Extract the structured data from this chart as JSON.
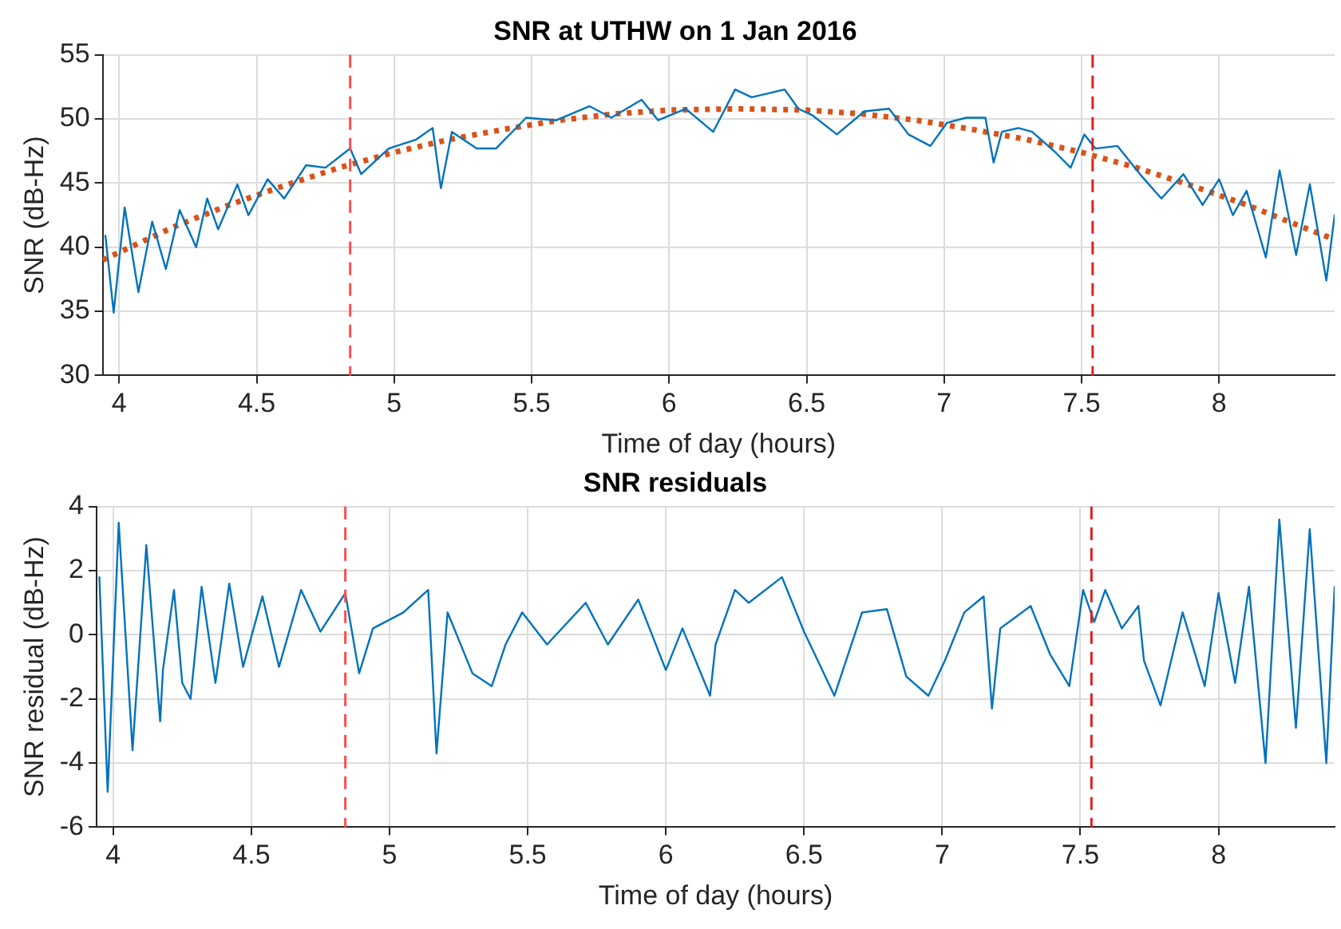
{
  "chart_data": [
    {
      "type": "line",
      "title": "SNR at UTHW on 1 Jan 2016",
      "xlabel": "Time of day (hours)",
      "ylabel": "SNR (dB-Hz)",
      "xlim": [
        3.94,
        8.42
      ],
      "xticks": [
        4,
        4.5,
        5,
        5.5,
        6,
        6.5,
        7,
        7.5,
        8
      ],
      "ylim": [
        30,
        55
      ],
      "yticks": [
        30,
        35,
        40,
        45,
        50,
        55
      ],
      "grid": true,
      "ref_lines": [
        {
          "axis": "x",
          "value": 4.84,
          "color": "#ff4d4d",
          "line_style": "dashed"
        },
        {
          "axis": "x",
          "value": 7.54,
          "color": "#e02020",
          "line_style": "dashed"
        }
      ],
      "series": [
        {
          "color": "#0072bd",
          "x": [
            3.95,
            3.98,
            4.02,
            4.07,
            4.12,
            4.17,
            4.22,
            4.28,
            4.32,
            4.36,
            4.43,
            4.47,
            4.54,
            4.6,
            4.68,
            4.75,
            4.84,
            4.88,
            4.98,
            5.08,
            5.14,
            5.17,
            5.21,
            5.3,
            5.37,
            5.48,
            5.59,
            5.71,
            5.79,
            5.9,
            5.96,
            6.06,
            6.16,
            6.24,
            6.3,
            6.42,
            6.47,
            6.52,
            6.61,
            6.71,
            6.8,
            6.87,
            6.95,
            7.01,
            7.08,
            7.15,
            7.18,
            7.21,
            7.27,
            7.32,
            7.4,
            7.46,
            7.51,
            7.55,
            7.63,
            7.72,
            7.79,
            7.87,
            7.94,
            8.0,
            8.05,
            8.1,
            8.17,
            8.22,
            8.28,
            8.33,
            8.39,
            8.42
          ],
          "values": [
            40.9,
            34.9,
            43.1,
            36.5,
            42.0,
            38.3,
            42.9,
            40.0,
            43.8,
            41.4,
            44.9,
            42.5,
            45.3,
            43.8,
            46.4,
            46.2,
            47.7,
            45.7,
            47.7,
            48.4,
            49.3,
            44.6,
            49.0,
            47.7,
            47.7,
            50.1,
            49.9,
            51.0,
            50.1,
            51.5,
            49.9,
            50.8,
            49.0,
            52.3,
            51.7,
            52.3,
            50.8,
            50.3,
            48.8,
            50.6,
            50.8,
            48.8,
            47.9,
            49.7,
            50.1,
            50.1,
            46.6,
            49.0,
            49.3,
            49.0,
            47.5,
            46.2,
            48.8,
            47.7,
            47.9,
            45.5,
            43.8,
            45.7,
            43.3,
            45.3,
            42.5,
            44.4,
            39.2,
            46.0,
            39.4,
            44.9,
            37.4,
            42.5
          ]
        },
        {
          "color": "#d95319",
          "line_style": "dotted",
          "x": [
            3.94,
            4.2,
            4.4,
            4.6,
            4.8,
            5.0,
            5.2,
            5.4,
            5.6,
            5.8,
            6.0,
            6.25,
            6.5,
            6.7,
            6.9,
            7.1,
            7.3,
            7.5,
            7.7,
            7.9,
            8.1,
            8.3,
            8.42
          ],
          "values": [
            39.0,
            41.6,
            43.3,
            44.8,
            46.2,
            47.4,
            48.4,
            49.2,
            49.9,
            50.4,
            50.7,
            50.8,
            50.7,
            50.4,
            49.9,
            49.2,
            48.4,
            47.4,
            46.2,
            44.8,
            43.3,
            41.6,
            40.6
          ]
        }
      ]
    },
    {
      "type": "line",
      "title": "SNR residuals",
      "xlabel": "Time of day (hours)",
      "ylabel": "SNR residual (dB-Hz)",
      "xlim": [
        3.94,
        8.42
      ],
      "xticks": [
        4,
        4.5,
        5,
        5.5,
        6,
        6.5,
        7,
        7.5,
        8
      ],
      "ylim": [
        -6,
        4
      ],
      "yticks": [
        -6,
        -4,
        -2,
        0,
        2,
        4
      ],
      "grid": true,
      "ref_lines": [
        {
          "axis": "x",
          "value": 4.84,
          "color": "#ff4d4d",
          "line_style": "dashed"
        },
        {
          "axis": "x",
          "value": 7.54,
          "color": "#e02020",
          "line_style": "dashed"
        }
      ],
      "series": [
        {
          "color": "#0072bd",
          "x": [
            3.95,
            3.98,
            4.02,
            4.07,
            4.12,
            4.17,
            4.18,
            4.22,
            4.25,
            4.28,
            4.32,
            4.37,
            4.42,
            4.47,
            4.54,
            4.6,
            4.68,
            4.75,
            4.84,
            4.89,
            4.94,
            5.05,
            5.14,
            5.17,
            5.21,
            5.3,
            5.37,
            5.42,
            5.48,
            5.57,
            5.71,
            5.79,
            5.9,
            6.0,
            6.06,
            6.16,
            6.18,
            6.25,
            6.3,
            6.42,
            6.5,
            6.61,
            6.71,
            6.8,
            6.87,
            6.95,
            7.01,
            7.08,
            7.15,
            7.18,
            7.21,
            7.32,
            7.39,
            7.46,
            7.51,
            7.55,
            7.59,
            7.65,
            7.71,
            7.73,
            7.79,
            7.87,
            7.95,
            8.0,
            8.06,
            8.11,
            8.17,
            8.22,
            8.28,
            8.33,
            8.39,
            8.42
          ],
          "values": [
            1.8,
            -4.9,
            3.5,
            -3.6,
            2.8,
            -2.7,
            -1.1,
            1.4,
            -1.5,
            -2.0,
            1.5,
            -1.5,
            1.6,
            -1.0,
            1.2,
            -1.0,
            1.4,
            0.1,
            1.3,
            -1.2,
            0.2,
            0.7,
            1.4,
            -3.7,
            0.7,
            -1.2,
            -1.6,
            -0.3,
            0.7,
            -0.3,
            1.0,
            -0.3,
            1.1,
            -1.1,
            0.2,
            -1.9,
            -0.3,
            1.4,
            1.0,
            1.8,
            0.1,
            -1.9,
            0.7,
            0.8,
            -1.3,
            -1.9,
            -0.8,
            0.7,
            1.2,
            -2.3,
            0.2,
            0.9,
            -0.6,
            -1.6,
            1.4,
            0.4,
            1.4,
            0.2,
            0.9,
            -0.8,
            -2.2,
            0.7,
            -1.6,
            1.3,
            -1.5,
            1.5,
            -4.0,
            3.6,
            -2.9,
            3.3,
            -4.0,
            1.5
          ]
        }
      ]
    }
  ]
}
